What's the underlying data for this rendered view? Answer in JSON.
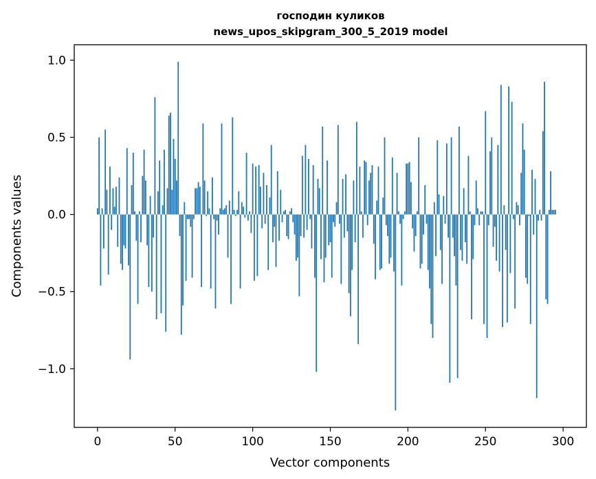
{
  "chart_data": {
    "type": "bar",
    "title": "господин куликов",
    "subtitle": "news_upos_skipgram_300_5_2019 model",
    "xlabel": "Vector components",
    "ylabel": "Components values",
    "xlim": [
      -15,
      315
    ],
    "ylim": [
      -1.38,
      1.1
    ],
    "xticks": [
      0,
      50,
      100,
      150,
      200,
      250,
      300
    ],
    "xtick_labels": [
      "0",
      "50",
      "100",
      "150",
      "200",
      "250",
      "300"
    ],
    "yticks": [
      -1.0,
      -0.5,
      0.0,
      0.5,
      1.0
    ],
    "ytick_labels": [
      "−1.0",
      "−0.5",
      "0.0",
      "0.5",
      "1.0"
    ],
    "bar_color": "#1f77b4",
    "grid": false,
    "values": [
      0.04,
      0.5,
      -0.46,
      0.04,
      -0.22,
      0.55,
      0.16,
      -0.39,
      0.31,
      -0.1,
      0.17,
      0.05,
      0.18,
      -0.21,
      0.24,
      -0.32,
      -0.36,
      -0.2,
      -0.22,
      0.43,
      -0.33,
      -0.94,
      0.19,
      0.4,
      0.02,
      -0.17,
      -0.58,
      0.02,
      -0.18,
      0.25,
      0.42,
      0.22,
      -0.2,
      -0.47,
      0.12,
      -0.5,
      -0.15,
      0.76,
      -0.68,
      0.15,
      0.35,
      -0.64,
      0.06,
      0.42,
      -0.76,
      0.17,
      0.64,
      0.66,
      0.16,
      0.49,
      0.36,
      0.22,
      0.99,
      -0.14,
      -0.78,
      -0.59,
      0.08,
      -0.43,
      -0.03,
      -0.03,
      -0.08,
      -0.41,
      -0.03,
      0.17,
      0.17,
      0.21,
      0.18,
      -0.47,
      0.59,
      0.22,
      -0.01,
      0.15,
      0.04,
      -0.48,
      0.24,
      -0.03,
      -0.61,
      -0.04,
      -0.13,
      0.04,
      0.59,
      0.03,
      0.04,
      0.06,
      -0.28,
      0.09,
      -0.58,
      0.63,
      0.03,
      -0.01,
      0.03,
      0.15,
      -0.48,
      0.08,
      0.05,
      -0.02,
      0.4,
      -0.04,
      0.02,
      -0.12,
      0.33,
      -0.43,
      0.31,
      -0.4,
      0.32,
      0.18,
      -0.09,
      0.27,
      -0.06,
      0.19,
      -0.36,
      0.11,
      0.45,
      -0.18,
      -0.08,
      -0.34,
      0.28,
      -0.17,
      0.16,
      -0.05,
      0.02,
      0.03,
      -0.14,
      -0.16,
      0.02,
      0.04,
      -0.05,
      -0.13,
      -0.3,
      -0.28,
      -0.53,
      -0.14,
      0.38,
      -0.15,
      0.45,
      -0.1,
      0.36,
      -0.03,
      -0.22,
      0.32,
      -0.41,
      -1.02,
      0.23,
      0.17,
      -0.29,
      0.57,
      -0.44,
      -0.28,
      0.35,
      -0.2,
      -0.18,
      -0.41,
      -0.05,
      -0.08,
      0.08,
      0.58,
      -0.06,
      -0.45,
      0.23,
      -0.15,
      0.26,
      -0.11,
      -0.51,
      -0.66,
      -0.36,
      0.22,
      -0.18,
      0.6,
      -0.84,
      0.31,
      0.02,
      -0.15,
      0.35,
      0.34,
      -0.07,
      0.22,
      0.27,
      0.32,
      -0.19,
      -0.42,
      0.09,
      0.31,
      -0.36,
      -0.35,
      0.11,
      0.5,
      -0.07,
      -0.14,
      -0.32,
      -0.28,
      0.37,
      -0.37,
      -1.27,
      0.27,
      0.02,
      -0.06,
      -0.46,
      -0.03,
      0.02,
      0.33,
      0.33,
      0.34,
      0.21,
      -0.09,
      -0.24,
      -0.14,
      0.02,
      0.5,
      -0.35,
      -0.32,
      -0.13,
      0.19,
      -0.06,
      -0.36,
      -0.48,
      -0.71,
      -0.8,
      0.08,
      -0.27,
      0.48,
      0.13,
      -0.23,
      -0.45,
      0.12,
      -0.06,
      0.46,
      -0.15,
      -1.09,
      0.5,
      -0.15,
      -0.27,
      -0.46,
      -1.06,
      0.57,
      -0.23,
      -0.3,
      0.17,
      -0.18,
      -0.32,
      0.38,
      0.02,
      -0.68,
      -0.29,
      -0.07,
      0.22,
      0.04,
      -0.07,
      0.02,
      0.02,
      -0.71,
      0.67,
      -0.8,
      -0.07,
      0.41,
      0.5,
      -0.21,
      -0.08,
      -0.3,
      0.45,
      -0.37,
      0.84,
      -0.73,
      0.06,
      -0.23,
      -0.7,
      0.83,
      -0.38,
      0.73,
      -0.03,
      -0.61,
      0.08,
      0.06,
      -0.07,
      0.27,
      0.59,
      0.42,
      -0.41,
      -0.45,
      -0.01,
      -0.71,
      0.29,
      -0.13,
      0.23,
      -1.19,
      -0.04,
      0.03,
      -0.04,
      0.54,
      0.86,
      -0.55,
      -0.58,
      0.03,
      0.28,
      0.03,
      0.03,
      0.03
    ]
  }
}
